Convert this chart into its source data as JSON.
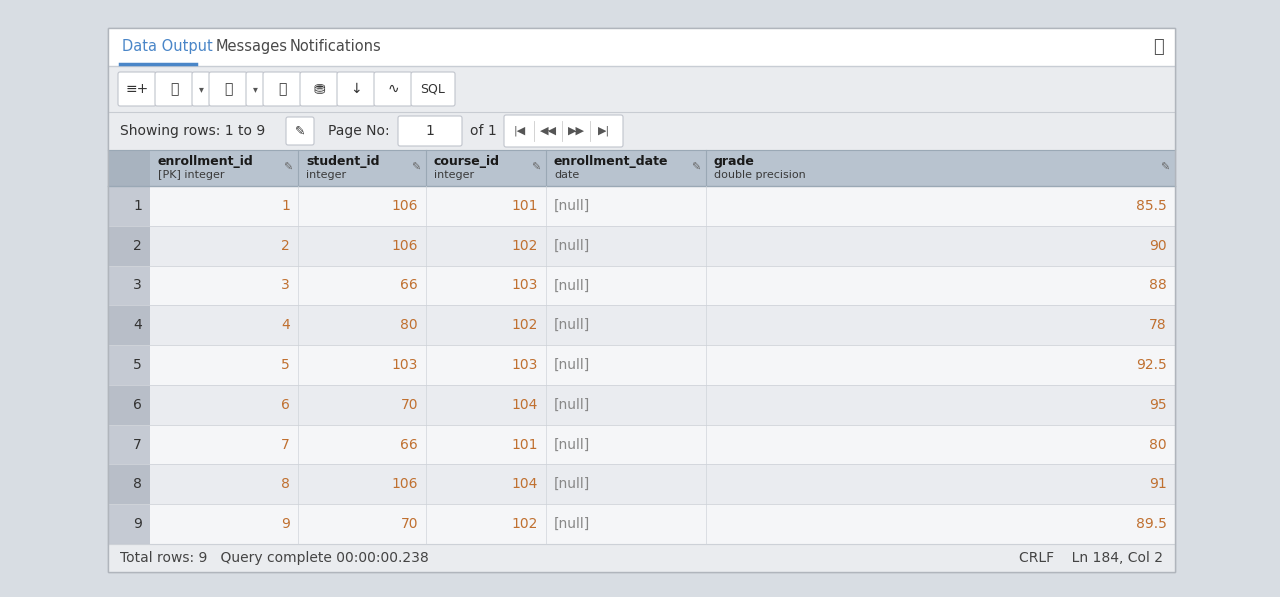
{
  "tab_labels": [
    "Data Output",
    "Messages",
    "Notifications"
  ],
  "active_tab": "Data Output",
  "showing_rows_text": "Showing rows: 1 to 9",
  "page_no_text": "Page No:",
  "page_no_value": "1",
  "of_text": "of 1",
  "columns": [
    {
      "name": "enrollment_id",
      "subname": "[PK] integer"
    },
    {
      "name": "student_id",
      "subname": "integer"
    },
    {
      "name": "course_id",
      "subname": "integer"
    },
    {
      "name": "enrollment_date",
      "subname": "date"
    },
    {
      "name": "grade",
      "subname": "double precision"
    }
  ],
  "rows": [
    [
      1,
      1,
      106,
      101,
      "[null]",
      "85.5"
    ],
    [
      2,
      2,
      106,
      102,
      "[null]",
      "90"
    ],
    [
      3,
      3,
      66,
      103,
      "[null]",
      "88"
    ],
    [
      4,
      4,
      80,
      102,
      "[null]",
      "78"
    ],
    [
      5,
      5,
      103,
      103,
      "[null]",
      "92.5"
    ],
    [
      6,
      6,
      70,
      104,
      "[null]",
      "95"
    ],
    [
      7,
      7,
      66,
      101,
      "[null]",
      "80"
    ],
    [
      8,
      8,
      106,
      104,
      "[null]",
      "91"
    ],
    [
      9,
      9,
      70,
      102,
      "[null]",
      "89.5"
    ]
  ],
  "status_left": "Total rows: 9   Query complete 00:00:00.238",
  "status_right": "CRLF    Ln 184, Col 2",
  "bg_outer": "#d8dde3",
  "bg_white": "#ffffff",
  "bg_toolbar": "#eaecef",
  "color_active_tab_text": "#4a86c8",
  "color_active_tab_line": "#4a86c8",
  "color_tab_text": "#4a4a4a",
  "color_header_bg": "#b8c3cf",
  "color_header_rn_bg": "#a8b3bf",
  "color_header_text": "#1a1a1a",
  "color_header_sub": "#3a3a3a",
  "color_row0_bg": "#f5f6f8",
  "color_row1_bg": "#eaecf0",
  "color_rn0_bg": "#c5cad3",
  "color_rn1_bg": "#b8bec8",
  "color_rn_text": "#333333",
  "color_null_text": "#888888",
  "color_number_text": "#c07030",
  "color_border_light": "#d0d4da",
  "color_border_header": "#9aa8b5",
  "color_status_bg": "#eaecef",
  "color_status_text": "#444444",
  "color_panel_border": "#b0b5bc",
  "figsize": [
    12.8,
    5.97
  ],
  "dpi": 100
}
